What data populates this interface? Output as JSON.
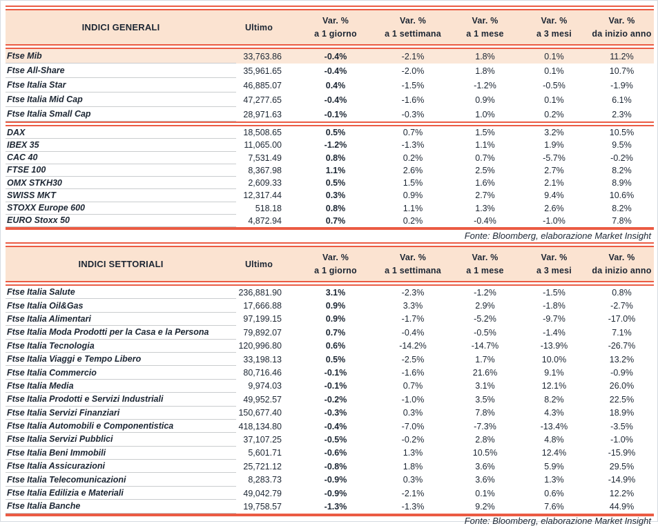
{
  "labels": {
    "ultimo": "Ultimo",
    "var_pct": "Var. %",
    "periods": [
      "a 1 giorno",
      "a 1 settimana",
      "a 1 mese",
      "a 3 mesi",
      "da inizio anno"
    ]
  },
  "source_note": "Fonte: Bloomberg, elaborazione Market Insight",
  "colors": {
    "accent_red": "#EB5B43",
    "header_bg": "#FBE3D1",
    "highlight_row_bg": "#FBE7D8",
    "text": "#1C2633",
    "row_separator": "#C9CCCE"
  },
  "general": {
    "title": "INDICI GENERALI",
    "groups": [
      {
        "rows": [
          [
            "Ftse Mib",
            "33,763.86",
            "-0.4%",
            "-2.1%",
            "1.8%",
            "0.1%",
            "11.2%"
          ],
          [
            "Ftse All-Share",
            "35,961.65",
            "-0.4%",
            "-2.0%",
            "1.8%",
            "0.1%",
            "10.7%"
          ],
          [
            "Ftse Italia Star",
            "46,885.07",
            "0.4%",
            "-1.5%",
            "-1.2%",
            "-0.5%",
            "-1.9%"
          ],
          [
            "Ftse Italia Mid Cap",
            "47,277.65",
            "-0.4%",
            "-1.6%",
            "0.9%",
            "0.1%",
            "6.1%"
          ],
          [
            "Ftse Italia Small Cap",
            "28,971.63",
            "-0.1%",
            "-0.3%",
            "1.0%",
            "0.2%",
            "2.3%"
          ]
        ]
      },
      {
        "rows": [
          [
            "DAX",
            "18,508.65",
            "0.5%",
            "0.7%",
            "1.5%",
            "3.2%",
            "10.5%"
          ],
          [
            "IBEX 35",
            "11,065.00",
            "-1.2%",
            "-1.3%",
            "1.1%",
            "1.9%",
            "9.5%"
          ],
          [
            "CAC 40",
            "7,531.49",
            "0.8%",
            "0.2%",
            "0.7%",
            "-5.7%",
            "-0.2%"
          ],
          [
            "FTSE 100",
            "8,367.98",
            "1.1%",
            "2.6%",
            "2.5%",
            "2.7%",
            "8.2%"
          ],
          [
            "OMX STKH30",
            "2,609.33",
            "0.5%",
            "1.5%",
            "1.6%",
            "2.1%",
            "8.9%"
          ],
          [
            "SWISS MKT",
            "12,317.44",
            "0.3%",
            "0.9%",
            "2.7%",
            "9.4%",
            "10.6%"
          ],
          [
            "STOXX Europe 600",
            "518.18",
            "0.8%",
            "1.1%",
            "1.3%",
            "2.6%",
            "8.2%"
          ],
          [
            "EURO Stoxx 50",
            "4,872.94",
            "0.7%",
            "0.2%",
            "-0.4%",
            "-1.0%",
            "7.8%"
          ]
        ]
      }
    ]
  },
  "sector": {
    "title": "INDICI SETTORIALI",
    "rows": [
      [
        "Ftse Italia Salute",
        "236,881.90",
        "3.1%",
        "-2.3%",
        "-1.2%",
        "-1.5%",
        "0.8%"
      ],
      [
        "Ftse Italia Oil&Gas",
        "17,666.88",
        "0.9%",
        "3.3%",
        "2.9%",
        "-1.8%",
        "-2.7%"
      ],
      [
        "Ftse Italia Alimentari",
        "97,199.15",
        "0.9%",
        "-1.7%",
        "-5.2%",
        "-9.7%",
        "-17.0%"
      ],
      [
        "Ftse Italia Moda Prodotti per la Casa e la Persona",
        "79,892.07",
        "0.7%",
        "-0.4%",
        "-0.5%",
        "-1.4%",
        "7.1%"
      ],
      [
        "Ftse Italia Tecnologia",
        "120,996.80",
        "0.6%",
        "-14.2%",
        "-14.7%",
        "-13.9%",
        "-26.7%"
      ],
      [
        "Ftse Italia Viaggi e Tempo Libero",
        "33,198.13",
        "0.5%",
        "-2.5%",
        "1.7%",
        "10.0%",
        "13.2%"
      ],
      [
        "Ftse Italia Commercio",
        "80,716.46",
        "-0.1%",
        "-1.6%",
        "21.6%",
        "9.1%",
        "-0.9%"
      ],
      [
        "Ftse Italia Media",
        "9,974.03",
        "-0.1%",
        "0.7%",
        "3.1%",
        "12.1%",
        "26.0%"
      ],
      [
        "Ftse Italia Prodotti e Servizi Industriali",
        "49,952.57",
        "-0.2%",
        "-1.0%",
        "3.5%",
        "8.2%",
        "22.5%"
      ],
      [
        "Ftse Italia Servizi Finanziari",
        "150,677.40",
        "-0.3%",
        "0.3%",
        "7.8%",
        "4.3%",
        "18.9%"
      ],
      [
        "Ftse Italia Automobili e Componentistica",
        "418,134.80",
        "-0.4%",
        "-7.0%",
        "-7.3%",
        "-13.4%",
        "-3.5%"
      ],
      [
        "Ftse Italia Servizi Pubblici",
        "37,107.25",
        "-0.5%",
        "-0.2%",
        "2.8%",
        "4.8%",
        "-1.0%"
      ],
      [
        "Ftse Italia Beni Immobili",
        "5,601.71",
        "-0.6%",
        "1.3%",
        "10.5%",
        "12.4%",
        "-15.9%"
      ],
      [
        "Ftse Italia Assicurazioni",
        "25,721.12",
        "-0.8%",
        "1.8%",
        "3.6%",
        "5.9%",
        "29.5%"
      ],
      [
        "Ftse Italia Telecomunicazioni",
        "8,283.73",
        "-0.9%",
        "0.3%",
        "3.6%",
        "1.3%",
        "-14.9%"
      ],
      [
        "Ftse Italia Edilizia e Materiali",
        "49,042.79",
        "-0.9%",
        "-2.1%",
        "0.1%",
        "0.6%",
        "12.2%"
      ],
      [
        "Ftse Italia Banche",
        "19,758.57",
        "-1.3%",
        "-1.3%",
        "9.2%",
        "7.6%",
        "44.9%"
      ]
    ]
  }
}
